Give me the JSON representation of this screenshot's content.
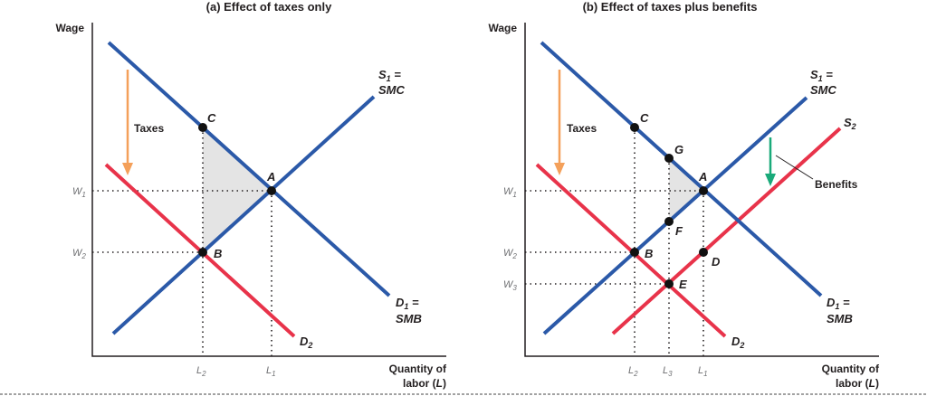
{
  "panel_a": {
    "title": "(a) Effect of taxes only",
    "y_label": "Wage",
    "x_label_1": "Quantity of",
    "x_label_2": "labor (",
    "x_label_var": "L",
    "x_label_end": ")",
    "curves": {
      "s1_main": "S",
      "s1_sub": "1",
      "s1_eq": " =",
      "s1_2": "SMC",
      "d1_main": "D",
      "d1_sub": "1",
      "d1_eq": " =",
      "d1_2": "SMB",
      "d2_main": "D",
      "d2_sub": "2"
    },
    "arrow_label": "Taxes",
    "points": [
      "A",
      "B",
      "C"
    ],
    "w_ticks": [
      {
        "m": "W",
        "s": "1"
      },
      {
        "m": "W",
        "s": "2"
      }
    ],
    "l_ticks": [
      {
        "m": "L",
        "s": "2"
      },
      {
        "m": "L",
        "s": "1"
      }
    ]
  },
  "panel_b": {
    "title": "(b) Effect of taxes plus benefits",
    "y_label": "Wage",
    "x_label_1": "Quantity of",
    "x_label_2": "labor (",
    "x_label_var": "L",
    "x_label_end": ")",
    "curves": {
      "s1_main": "S",
      "s1_sub": "1",
      "s1_eq": " =",
      "s1_2": "SMC",
      "d1_main": "D",
      "d1_sub": "1",
      "d1_eq": " =",
      "d1_2": "SMB",
      "d2_main": "D",
      "d2_sub": "2",
      "s2_main": "S",
      "s2_sub": "2"
    },
    "arrow_label": "Taxes",
    "benefits_label": "Benefits",
    "points": [
      "A",
      "B",
      "C",
      "G",
      "F",
      "E",
      "D"
    ],
    "w_ticks": [
      {
        "m": "W",
        "s": "1"
      },
      {
        "m": "W",
        "s": "2"
      },
      {
        "m": "W",
        "s": "3"
      }
    ],
    "l_ticks": [
      {
        "m": "L",
        "s": "2"
      },
      {
        "m": "L",
        "s": "3"
      },
      {
        "m": "L",
        "s": "1"
      }
    ]
  },
  "colors": {
    "supply_demand": "#2b59a8",
    "shifted": "#e8334a",
    "taxes_arrow": "#f4a05a",
    "benefits_arrow": "#1aaa7a",
    "shade": "#e4e4e4"
  }
}
